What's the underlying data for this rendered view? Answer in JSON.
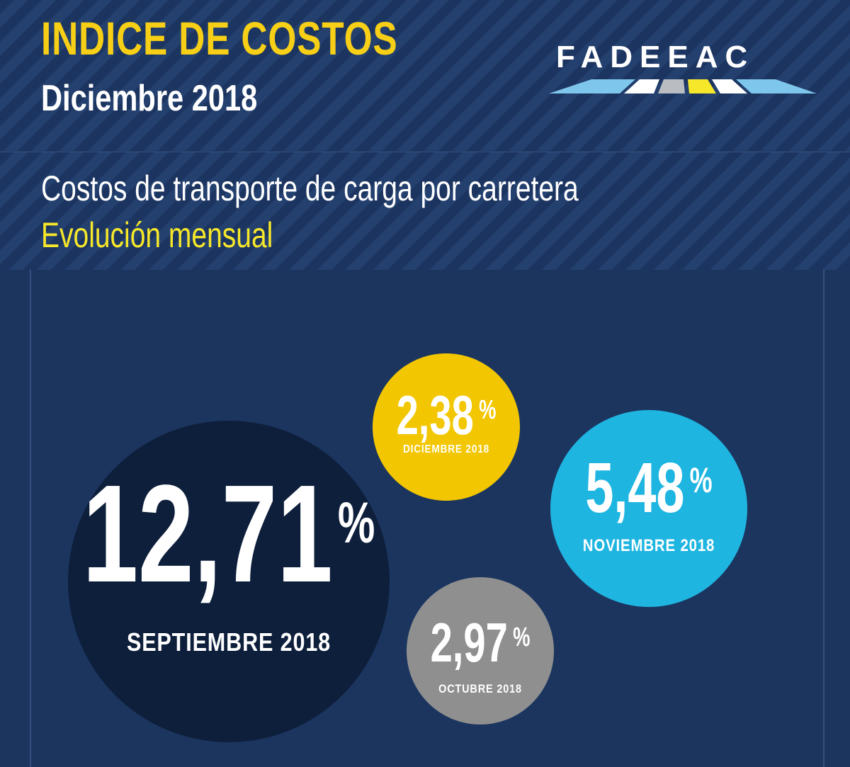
{
  "header": {
    "title": "INDICE DE COSTOS",
    "subtitle": "Diciembre 2018",
    "logo_text": "FADEEAC"
  },
  "description": {
    "line1": "Costos de transporte de carga por carretera",
    "line2": "Evolución mensual"
  },
  "colors": {
    "title_yellow": "#f6cf16",
    "navy": "#1b355f",
    "dark_navy": "#0e1f3b",
    "yellow": "#f2c600",
    "cyan": "#1fb5e1",
    "gray": "#8f8f8f"
  },
  "chart_data": {
    "type": "bubble",
    "unit": "%",
    "points": [
      {
        "label": "SEPTIEMBRE 2018",
        "value": 12.71,
        "display": "12,71",
        "color": "#0e1f3b"
      },
      {
        "label": "DICIEMBRE 2018",
        "value": 2.38,
        "display": "2,38",
        "color": "#f2c600"
      },
      {
        "label": "NOVIEMBRE 2018",
        "value": 5.48,
        "display": "5,48",
        "color": "#1fb5e1"
      },
      {
        "label": "OCTUBRE 2018",
        "value": 2.97,
        "display": "2,97",
        "color": "#8f8f8f"
      }
    ]
  }
}
